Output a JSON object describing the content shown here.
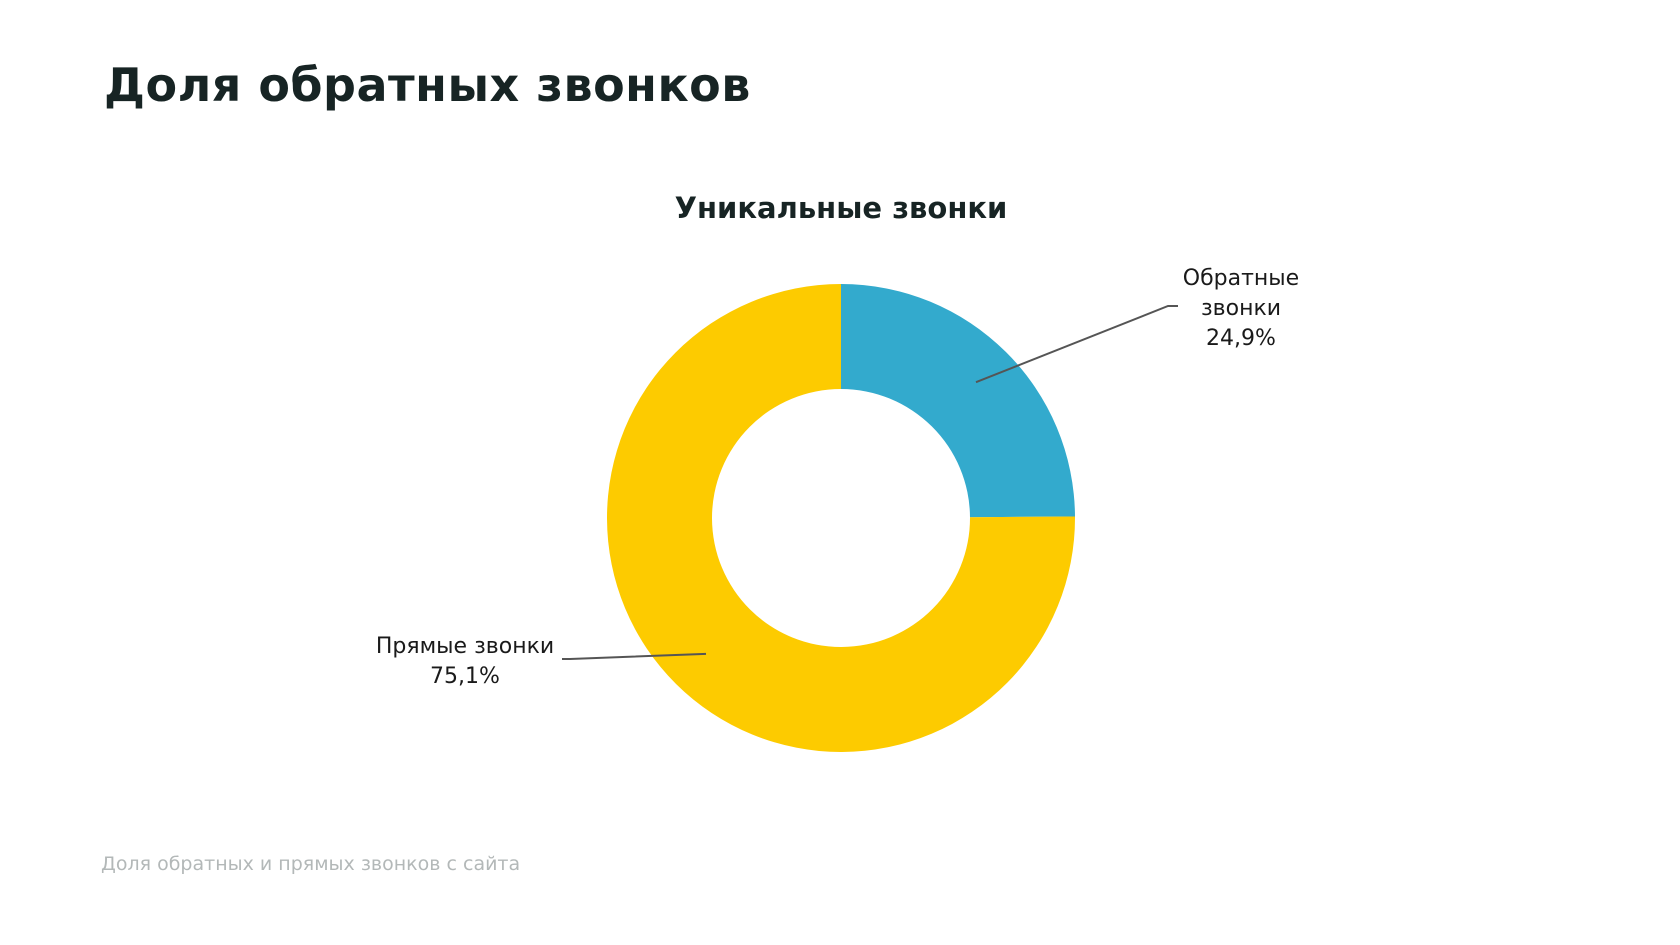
{
  "page": {
    "title": "Доля обратных звонков",
    "footer": "Доля обратных и прямых звонков с сайта"
  },
  "chart_data": {
    "type": "pie",
    "variant": "donut",
    "title": "Уникальные звонки",
    "slices": [
      {
        "label_lines": [
          "Обратные",
          "звонки"
        ],
        "value": 24.9,
        "value_label": "24,9%",
        "color": "#33aacd"
      },
      {
        "label_lines": [
          "Прямые звонки"
        ],
        "value": 75.1,
        "value_label": "75,1%",
        "color": "#fdcb00"
      }
    ],
    "start": "top",
    "direction": "clockwise",
    "legend": "none"
  }
}
